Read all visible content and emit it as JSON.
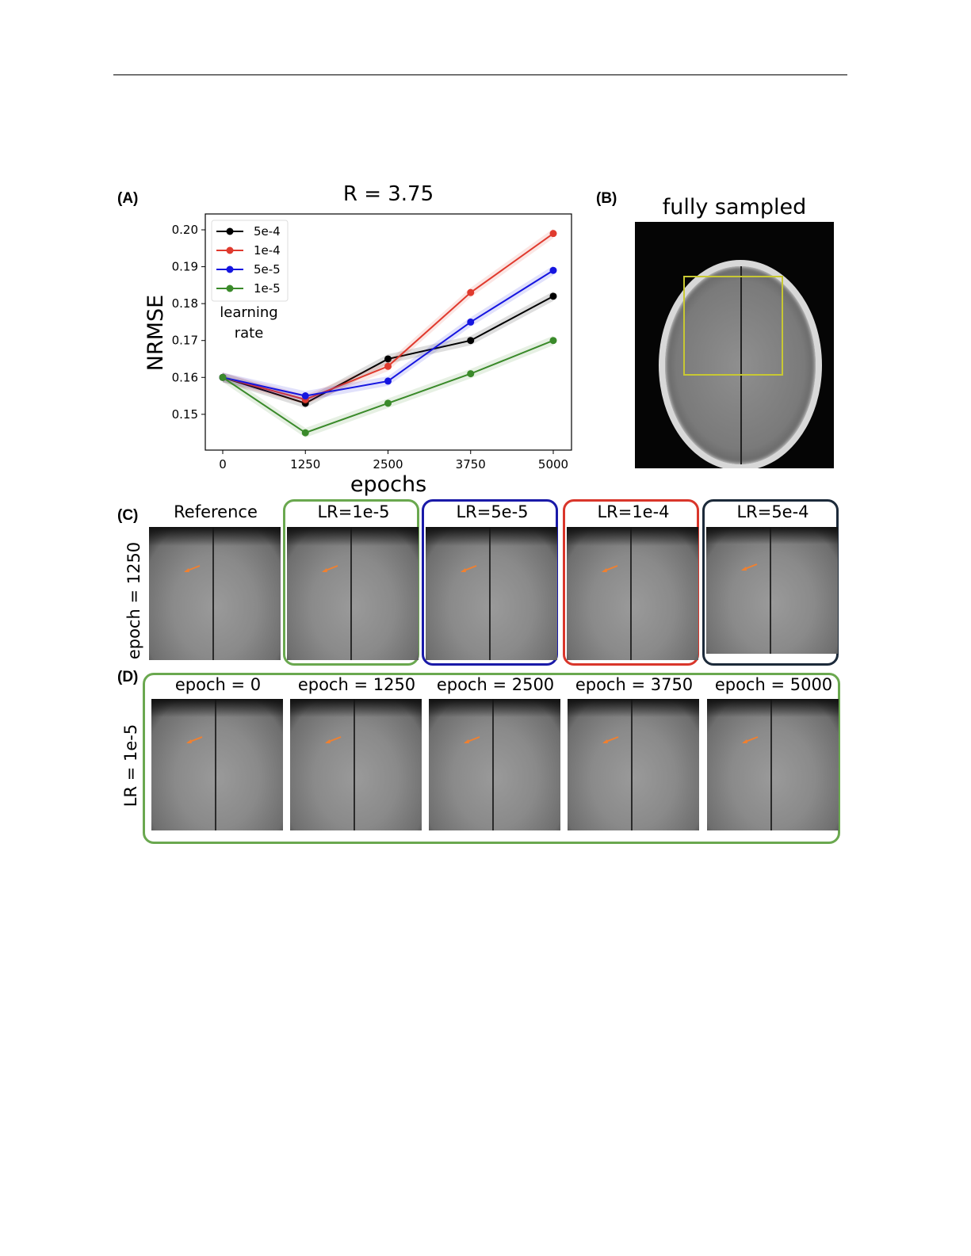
{
  "panels": {
    "A": "(A)",
    "B": "(B)",
    "C": "(C)",
    "D": "(D)"
  },
  "panel_b": {
    "title": "fully sampled",
    "roi_color": "#c8c833"
  },
  "panel_c": {
    "row_label": "epoch = 1250",
    "titles": [
      "Reference",
      "LR=1e-5",
      "LR=5e-5",
      "LR=1e-4",
      "LR=5e-4"
    ],
    "frame_colors": [
      "",
      "#6aa84f",
      "#1a1aa8",
      "#d9362b",
      "#1c2a3a"
    ]
  },
  "panel_d": {
    "row_label": "LR = 1e-5",
    "titles": [
      "epoch = 0",
      "epoch = 1250",
      "epoch = 2500",
      "epoch = 3750",
      "epoch = 5000"
    ],
    "frame_color": "#6aa84f"
  },
  "chart_data": {
    "type": "line",
    "title": "R = 3.75",
    "xlabel": "epochs",
    "ylabel": "NRMSE",
    "x": [
      0,
      1250,
      2500,
      3750,
      5000
    ],
    "xticks": [
      "0",
      "1250",
      "2500",
      "3750",
      "5000"
    ],
    "yticks": [
      "0.15",
      "0.16",
      "0.17",
      "0.18",
      "0.19",
      "0.20"
    ],
    "ylim": [
      0.1403,
      0.2043
    ],
    "legend": {
      "title": "learning rate",
      "placement": "top-left"
    },
    "series": [
      {
        "name": "5e-4",
        "color": "#000000",
        "values": [
          0.16,
          0.153,
          0.165,
          0.17,
          0.182
        ]
      },
      {
        "name": "1e-4",
        "color": "#e03a2e",
        "values": [
          0.16,
          0.154,
          0.163,
          0.183,
          0.199
        ]
      },
      {
        "name": "5e-5",
        "color": "#1515e0",
        "values": [
          0.16,
          0.155,
          0.159,
          0.175,
          0.189
        ]
      },
      {
        "name": "1e-5",
        "color": "#3a8a2a",
        "values": [
          0.16,
          0.145,
          0.153,
          0.161,
          0.17
        ]
      }
    ],
    "shaded_band": true
  }
}
